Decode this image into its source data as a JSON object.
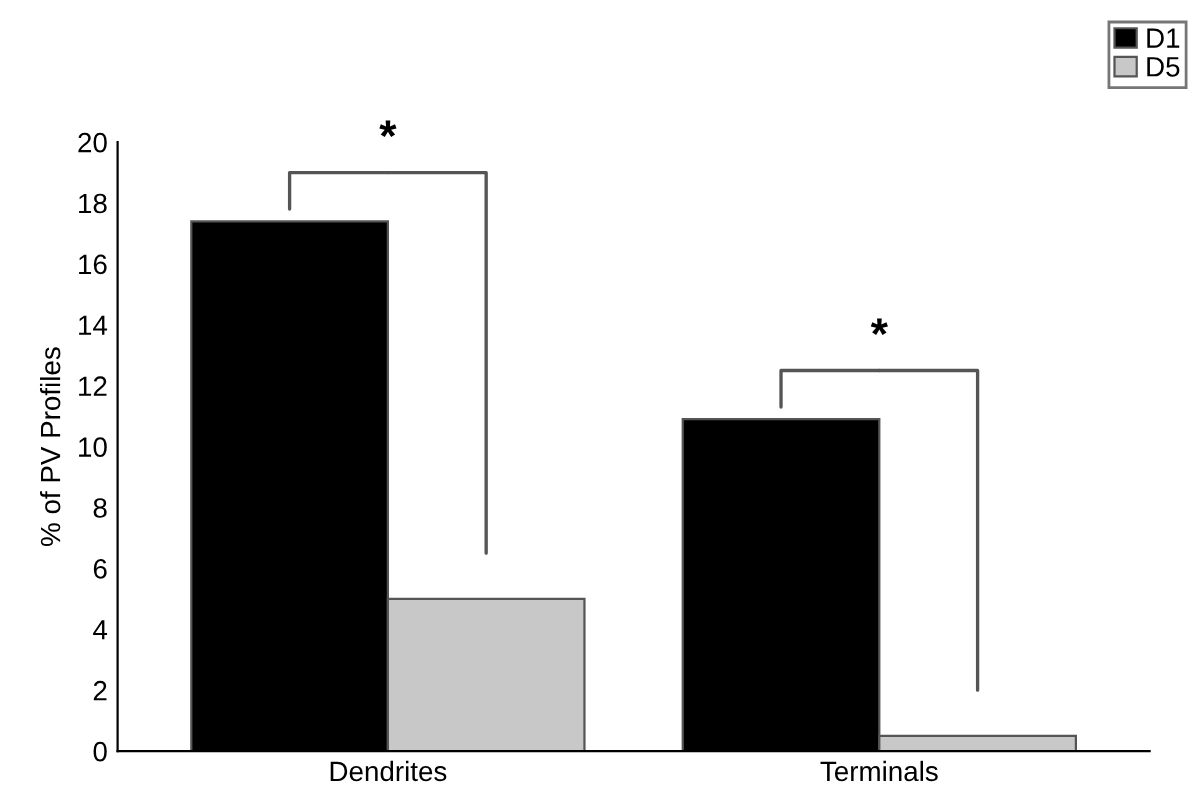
{
  "chart_data": {
    "type": "bar",
    "ylabel": "% of PV Profiles",
    "categories": [
      "Dendrites",
      "Terminals"
    ],
    "series": [
      {
        "name": "D1",
        "color": "#000000",
        "values": [
          17.4,
          10.9
        ]
      },
      {
        "name": "D5",
        "color": "#c8c8c8",
        "values": [
          5.0,
          0.5
        ]
      }
    ],
    "ylim": [
      0,
      20
    ],
    "yticks": [
      0,
      2,
      4,
      6,
      8,
      10,
      12,
      14,
      16,
      18,
      20
    ],
    "grid": false,
    "legend": "top right",
    "annotations": [
      "*",
      "*"
    ]
  }
}
